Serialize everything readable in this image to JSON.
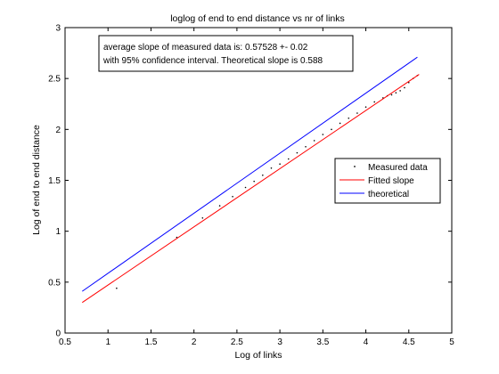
{
  "chart_data": {
    "type": "line",
    "title": "loglog of end to end distance vs nr of links",
    "xlabel": "Log of links",
    "ylabel": "Log of end to end distance",
    "xlim": [
      0.5,
      5
    ],
    "ylim": [
      0,
      3
    ],
    "xticks": [
      0.5,
      1,
      1.5,
      2,
      2.5,
      3,
      3.5,
      4,
      4.5,
      5
    ],
    "xtick_labels": [
      "0.5",
      "1",
      "1.5",
      "2",
      "2.5",
      "3",
      "3.5",
      "4",
      "4.5",
      "5"
    ],
    "yticks": [
      0,
      0.5,
      1,
      1.5,
      2,
      2.5,
      3
    ],
    "ytick_labels": [
      "0",
      "0.5",
      "1",
      "1.5",
      "2",
      "2.5",
      "3"
    ],
    "grid": false,
    "legend_position": "right",
    "annotation": [
      "average slope of measured data is: 0.57528 +- 0.02",
      "with 95% confidence interval. Theoretical slope is 0.588"
    ],
    "series": [
      {
        "name": "Measured data",
        "style": "points",
        "color": "#000000",
        "x": [
          1.1,
          1.8,
          2.1,
          2.3,
          2.45,
          2.6,
          2.7,
          2.8,
          2.9,
          3.0,
          3.1,
          3.2,
          3.3,
          3.4,
          3.5,
          3.6,
          3.7,
          3.8,
          3.9,
          4.0,
          4.1,
          4.2,
          4.25,
          4.3,
          4.35,
          4.4,
          4.45,
          4.5,
          4.55,
          4.6
        ],
        "y": [
          0.44,
          0.94,
          1.13,
          1.25,
          1.34,
          1.43,
          1.49,
          1.55,
          1.62,
          1.66,
          1.71,
          1.77,
          1.83,
          1.89,
          1.95,
          2.0,
          2.06,
          2.11,
          2.16,
          2.22,
          2.27,
          2.31,
          2.33,
          2.34,
          2.36,
          2.38,
          2.41,
          2.46,
          2.5,
          2.53
        ]
      },
      {
        "name": "Fitted slope",
        "style": "line",
        "color": "#ff0000",
        "x": [
          0.7,
          4.62
        ],
        "y": [
          0.3,
          2.54
        ]
      },
      {
        "name": "theoretical",
        "style": "line",
        "color": "#0000ff",
        "x": [
          0.7,
          4.6
        ],
        "y": [
          0.41,
          2.71
        ]
      }
    ]
  }
}
